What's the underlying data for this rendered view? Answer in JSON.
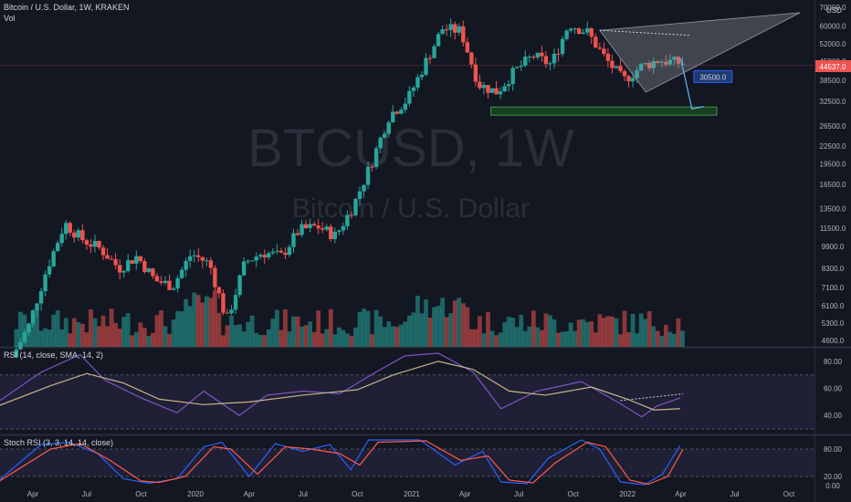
{
  "header": {
    "symbol_title": "Bitcoin / U.S. Dollar, 1W, KRAKEN",
    "volume_label": "Vol",
    "rsi_label": "RSI (14, close, SMA, 14, 2)",
    "stoch_label": "Stoch RSI (3, 3, 14, 14, close)",
    "currency": "USD"
  },
  "watermark": {
    "symbol": "BTCUSD, 1W",
    "name": "Bitcoin / U.S. Dollar"
  },
  "colors": {
    "background": "#131722",
    "up": "#26a69a",
    "down": "#ef5350",
    "rsi": "#7e57c2",
    "rsi_ma": "#c9b58a",
    "stoch_k": "#2962ff",
    "stoch_d": "#ff5b45",
    "pattern": "#6d7280",
    "target": "#2962ff",
    "support": "#1b5e20"
  },
  "chart_data": [
    {
      "type": "candlestick",
      "scale": "log",
      "price_ticks": [
        4600,
        5300,
        6100,
        7100,
        8300,
        9900,
        11500,
        13500,
        16500,
        19500,
        22500,
        26500,
        32500,
        38500,
        45000,
        52000,
        60000,
        70000
      ],
      "price_tick_labels": [
        "4600.0",
        "5300.0",
        "6100.0",
        "7100.0",
        "8300.0",
        "9900.0",
        "11500.0",
        "13500.0",
        "16500.0",
        "19500.0",
        "22500.0",
        "26500.0",
        "32500.0",
        "38500.0",
        "45000.0",
        "52000.0",
        "60000.0",
        "70000.0"
      ],
      "x_tick_labels": [
        "Apr",
        "Jul",
        "Oct",
        "2020",
        "Apr",
        "Jul",
        "Oct",
        "2021",
        "Apr",
        "Jul",
        "Oct",
        "2022",
        "Apr",
        "Jul",
        "Oct"
      ],
      "x_tick_dates": [
        "2019-04-01",
        "2019-07-01",
        "2019-10-01",
        "2020-01-01",
        "2020-04-01",
        "2020-07-01",
        "2020-10-01",
        "2021-01-01",
        "2021-04-01",
        "2021-07-01",
        "2021-10-01",
        "2022-01-01",
        "2022-04-01",
        "2022-07-01",
        "2022-10-01"
      ],
      "series_close": [
        {
          "date": "2019-03-01",
          "close": 3900
        },
        {
          "date": "2019-04-01",
          "close": 5200
        },
        {
          "date": "2019-05-01",
          "close": 8200
        },
        {
          "date": "2019-06-01",
          "close": 12000
        },
        {
          "date": "2019-07-01",
          "close": 10500
        },
        {
          "date": "2019-08-01",
          "close": 9700
        },
        {
          "date": "2019-09-01",
          "close": 8300
        },
        {
          "date": "2019-10-01",
          "close": 9150
        },
        {
          "date": "2019-11-01",
          "close": 7500
        },
        {
          "date": "2019-12-01",
          "close": 7200
        },
        {
          "date": "2020-01-01",
          "close": 9350
        },
        {
          "date": "2020-02-01",
          "close": 8600
        },
        {
          "date": "2020-03-01",
          "close": 5400
        },
        {
          "date": "2020-04-01",
          "close": 8700
        },
        {
          "date": "2020-05-01",
          "close": 9450
        },
        {
          "date": "2020-06-01",
          "close": 9150
        },
        {
          "date": "2020-07-01",
          "close": 11300
        },
        {
          "date": "2020-08-01",
          "close": 11700
        },
        {
          "date": "2020-09-01",
          "close": 10800
        },
        {
          "date": "2020-10-01",
          "close": 13800
        },
        {
          "date": "2020-11-01",
          "close": 19700
        },
        {
          "date": "2020-12-01",
          "close": 29000
        },
        {
          "date": "2021-01-01",
          "close": 33000
        },
        {
          "date": "2021-02-01",
          "close": 45000
        },
        {
          "date": "2021-03-01",
          "close": 58800
        },
        {
          "date": "2021-04-01",
          "close": 57700
        },
        {
          "date": "2021-05-01",
          "close": 37300
        },
        {
          "date": "2021-06-01",
          "close": 35000
        },
        {
          "date": "2021-07-01",
          "close": 41500
        },
        {
          "date": "2021-08-01",
          "close": 47100
        },
        {
          "date": "2021-09-01",
          "close": 43800
        },
        {
          "date": "2021-10-01",
          "close": 61300
        },
        {
          "date": "2021-11-01",
          "close": 57000
        },
        {
          "date": "2021-12-01",
          "close": 46200
        },
        {
          "date": "2022-01-01",
          "close": 38500
        },
        {
          "date": "2022-02-01",
          "close": 43200
        },
        {
          "date": "2022-03-01",
          "close": 45500
        },
        {
          "date": "2022-04-01",
          "close": 44500
        }
      ],
      "last_price_label": "44537.0",
      "annotations": {
        "target_label": "30500.0",
        "target_price": 30500,
        "support_zone": {
          "low": 29000,
          "high": 31000,
          "from": "2021-05-15",
          "to": "2022-06-01"
        },
        "triangle": {
          "from": "2021-11-15",
          "to": "2022-10-20",
          "top_start": 58000,
          "top_end": 67000,
          "bottom_start": 35000
        }
      }
    },
    {
      "type": "line",
      "title": "RSI (14, close, SMA, 14, 2)",
      "ticks": [
        40,
        60,
        80
      ],
      "tick_labels": [
        "40.00",
        "60.00",
        "80.00"
      ],
      "ylim": [
        30,
        88
      ],
      "band": [
        30,
        70
      ],
      "series": [
        {
          "key": "rsi",
          "values": [
            {
              "date": "2019-02-01",
              "v": 50
            },
            {
              "date": "2019-04-15",
              "v": 72
            },
            {
              "date": "2019-06-20",
              "v": 85
            },
            {
              "date": "2019-08-01",
              "v": 66
            },
            {
              "date": "2019-10-01",
              "v": 53
            },
            {
              "date": "2019-12-01",
              "v": 42
            },
            {
              "date": "2020-01-15",
              "v": 58
            },
            {
              "date": "2020-03-15",
              "v": 40
            },
            {
              "date": "2020-05-01",
              "v": 55
            },
            {
              "date": "2020-07-01",
              "v": 58
            },
            {
              "date": "2020-09-01",
              "v": 56
            },
            {
              "date": "2020-11-01",
              "v": 72
            },
            {
              "date": "2020-12-20",
              "v": 84
            },
            {
              "date": "2021-02-15",
              "v": 86
            },
            {
              "date": "2021-04-15",
              "v": 72
            },
            {
              "date": "2021-06-01",
              "v": 45
            },
            {
              "date": "2021-08-01",
              "v": 58
            },
            {
              "date": "2021-10-15",
              "v": 65
            },
            {
              "date": "2021-12-15",
              "v": 50
            },
            {
              "date": "2022-01-25",
              "v": 39
            },
            {
              "date": "2022-02-20",
              "v": 47
            },
            {
              "date": "2022-03-31",
              "v": 53
            }
          ]
        },
        {
          "key": "rsi_ma",
          "values": [
            {
              "date": "2019-02-01",
              "v": 47
            },
            {
              "date": "2019-05-01",
              "v": 62
            },
            {
              "date": "2019-07-01",
              "v": 71
            },
            {
              "date": "2019-09-01",
              "v": 64
            },
            {
              "date": "2019-11-01",
              "v": 52
            },
            {
              "date": "2020-01-15",
              "v": 48
            },
            {
              "date": "2020-04-01",
              "v": 50
            },
            {
              "date": "2020-07-01",
              "v": 55
            },
            {
              "date": "2020-10-01",
              "v": 59
            },
            {
              "date": "2020-12-01",
              "v": 70
            },
            {
              "date": "2021-02-15",
              "v": 80
            },
            {
              "date": "2021-04-15",
              "v": 74
            },
            {
              "date": "2021-06-15",
              "v": 58
            },
            {
              "date": "2021-08-15",
              "v": 55
            },
            {
              "date": "2021-11-01",
              "v": 61
            },
            {
              "date": "2022-01-01",
              "v": 52
            },
            {
              "date": "2022-02-15",
              "v": 44
            },
            {
              "date": "2022-03-31",
              "v": 45
            }
          ]
        }
      ],
      "trendline": {
        "from": "2021-12-20",
        "to": "2022-04-05",
        "start": 51,
        "end": 56
      }
    },
    {
      "type": "line",
      "title": "Stoch RSI (3, 3, 14, 14, close)",
      "ticks": [
        0,
        20,
        80
      ],
      "tick_labels": [
        "0.00",
        "20.00",
        "80.00"
      ],
      "ylim": [
        -4,
        104
      ],
      "band": [
        20,
        80
      ],
      "series": [
        {
          "key": "k",
          "values": [
            {
              "date": "2019-02-01",
              "v": 10
            },
            {
              "date": "2019-04-15",
              "v": 90
            },
            {
              "date": "2019-06-01",
              "v": 95
            },
            {
              "date": "2019-07-20",
              "v": 70
            },
            {
              "date": "2019-09-01",
              "v": 15
            },
            {
              "date": "2019-10-15",
              "v": 5
            },
            {
              "date": "2019-12-01",
              "v": 15
            },
            {
              "date": "2020-01-15",
              "v": 85
            },
            {
              "date": "2020-02-15",
              "v": 95
            },
            {
              "date": "2020-04-01",
              "v": 20
            },
            {
              "date": "2020-05-15",
              "v": 92
            },
            {
              "date": "2020-07-01",
              "v": 75
            },
            {
              "date": "2020-08-15",
              "v": 90
            },
            {
              "date": "2020-09-20",
              "v": 35
            },
            {
              "date": "2020-10-20",
              "v": 100
            },
            {
              "date": "2021-01-15",
              "v": 100
            },
            {
              "date": "2021-03-15",
              "v": 45
            },
            {
              "date": "2021-05-01",
              "v": 75
            },
            {
              "date": "2021-06-01",
              "v": 8
            },
            {
              "date": "2021-07-15",
              "v": 4
            },
            {
              "date": "2021-08-20",
              "v": 60
            },
            {
              "date": "2021-10-15",
              "v": 100
            },
            {
              "date": "2021-11-15",
              "v": 80
            },
            {
              "date": "2021-12-20",
              "v": 8
            },
            {
              "date": "2022-01-30",
              "v": 2
            },
            {
              "date": "2022-03-01",
              "v": 25
            },
            {
              "date": "2022-03-31",
              "v": 88
            }
          ]
        },
        {
          "key": "d",
          "values": [
            {
              "date": "2019-02-01",
              "v": 8
            },
            {
              "date": "2019-05-01",
              "v": 80
            },
            {
              "date": "2019-06-20",
              "v": 92
            },
            {
              "date": "2019-08-10",
              "v": 55
            },
            {
              "date": "2019-10-01",
              "v": 10
            },
            {
              "date": "2019-11-01",
              "v": 7
            },
            {
              "date": "2019-12-15",
              "v": 20
            },
            {
              "date": "2020-02-01",
              "v": 85
            },
            {
              "date": "2020-03-01",
              "v": 80
            },
            {
              "date": "2020-04-15",
              "v": 25
            },
            {
              "date": "2020-06-01",
              "v": 85
            },
            {
              "date": "2020-07-15",
              "v": 80
            },
            {
              "date": "2020-09-01",
              "v": 70
            },
            {
              "date": "2020-10-05",
              "v": 45
            },
            {
              "date": "2020-11-05",
              "v": 95
            },
            {
              "date": "2021-01-25",
              "v": 98
            },
            {
              "date": "2021-03-25",
              "v": 55
            },
            {
              "date": "2021-05-10",
              "v": 65
            },
            {
              "date": "2021-06-15",
              "v": 12
            },
            {
              "date": "2021-07-25",
              "v": 6
            },
            {
              "date": "2021-09-01",
              "v": 50
            },
            {
              "date": "2021-10-25",
              "v": 95
            },
            {
              "date": "2021-11-25",
              "v": 85
            },
            {
              "date": "2022-01-05",
              "v": 12
            },
            {
              "date": "2022-02-05",
              "v": 3
            },
            {
              "date": "2022-03-10",
              "v": 20
            },
            {
              "date": "2022-04-05",
              "v": 80
            }
          ]
        }
      ]
    }
  ]
}
